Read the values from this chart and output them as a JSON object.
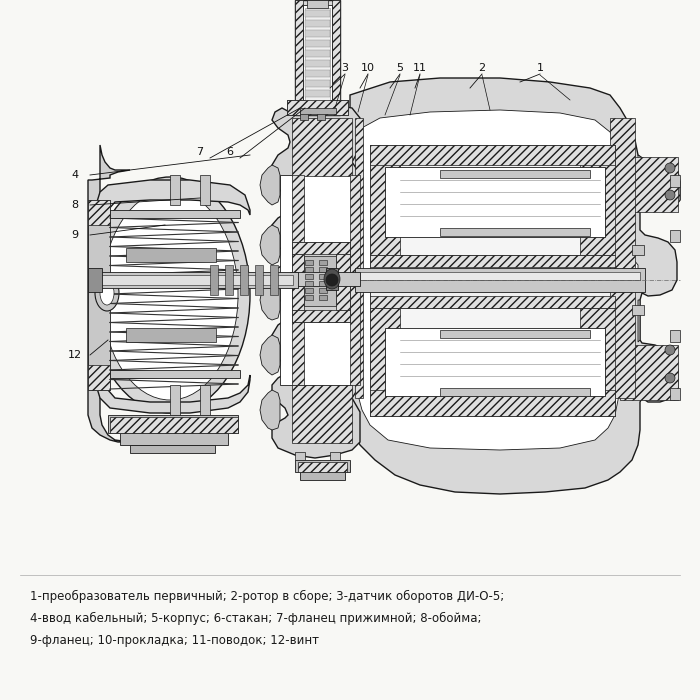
{
  "background_color": "#f8f8f5",
  "caption_lines": [
    "1-преобразователь первичный; 2-ротор в сборе; 3-датчик оборотов ДИ-О-5;",
    "4-ввод кабельный; 5-корпус; 6-стакан; 7-фланец прижимной; 8-обойма;",
    "9-фланец; 10-прокладка; 11-поводок; 12-винт"
  ],
  "caption_fontsize": 8.5,
  "caption_color": "#1a1a1a",
  "figure_width": 7.0,
  "figure_height": 7.0,
  "lc": "#1a1a1a",
  "hatch_color": "#555555",
  "light_gray": "#e8e8e8",
  "mid_gray": "#c8c8c8",
  "dark_gray": "#909090",
  "white": "#ffffff",
  "label_fontsize": 8,
  "label_color": "#111111"
}
